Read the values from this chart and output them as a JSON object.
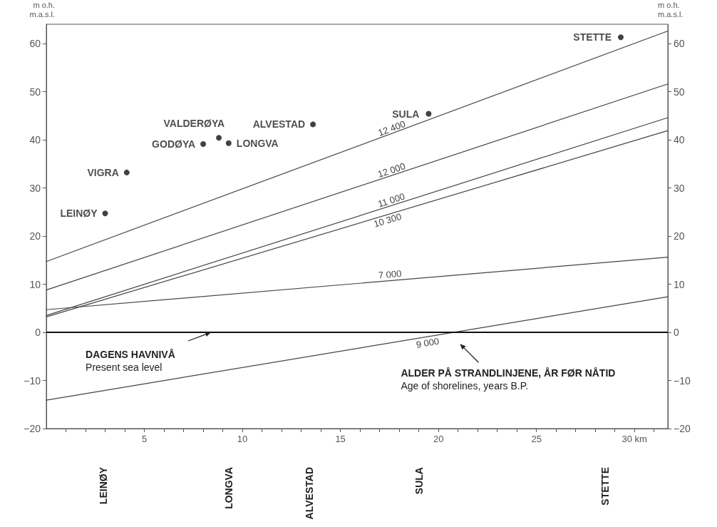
{
  "chart_data": {
    "type": "line",
    "ylabel": "m o.h.\nm.a.s.l.",
    "y2label": "m o.h.\nm.a.s.l.",
    "xlim": [
      0,
      31.7
    ],
    "xticks": [
      {
        "value": 1,
        "label": null
      },
      {
        "value": 2,
        "label": null
      },
      {
        "value": 3,
        "label": null
      },
      {
        "value": 4,
        "label": null
      },
      5,
      {
        "value": 6,
        "label": null
      },
      {
        "value": 7,
        "label": null
      },
      {
        "value": 8,
        "label": null
      },
      {
        "value": 9,
        "label": null
      },
      10,
      {
        "value": 11,
        "label": null
      },
      {
        "value": 12,
        "label": null
      },
      {
        "value": 13,
        "label": null
      },
      {
        "value": 14,
        "label": null
      },
      15,
      {
        "value": 16,
        "label": null
      },
      {
        "value": 17,
        "label": null
      },
      {
        "value": 18,
        "label": null
      },
      {
        "value": 19,
        "label": null
      },
      20,
      {
        "value": 21,
        "label": null
      },
      {
        "value": 22,
        "label": null
      },
      {
        "value": 23,
        "label": null
      },
      {
        "value": 24,
        "label": null
      },
      25,
      {
        "value": 26,
        "label": null
      },
      {
        "value": 27,
        "label": null
      },
      {
        "value": 28,
        "label": null
      },
      {
        "value": 29,
        "label": null
      },
      {
        "value": 30,
        "label": "30 km"
      },
      {
        "value": 31,
        "label": null
      }
    ],
    "ylim": [
      -20,
      64
    ],
    "yticks": [
      -20,
      -10,
      0,
      10,
      20,
      30,
      40,
      50,
      60
    ],
    "y2lim": [
      -20,
      64
    ],
    "y2ticks": [
      -20,
      -10,
      0,
      10,
      20,
      30,
      40,
      50,
      60
    ],
    "grid": false,
    "series": [
      {
        "name": "12 400",
        "color": "#444444",
        "x": [
          0,
          31.7
        ],
        "values": [
          14.7,
          62.6
        ]
      },
      {
        "name": "12 000",
        "color": "#444444",
        "x": [
          0,
          31.7
        ],
        "values": [
          8.8,
          51.6
        ]
      },
      {
        "name": "11 000",
        "color": "#444444",
        "x": [
          0,
          31.7
        ],
        "values": [
          3.5,
          44.6
        ]
      },
      {
        "name": "10 300",
        "color": "#444444",
        "x": [
          0,
          31.7
        ],
        "values": [
          3.2,
          41.9
        ]
      },
      {
        "name": "7 000",
        "color": "#444444",
        "x": [
          0,
          31.7
        ],
        "values": [
          4.7,
          15.6
        ]
      },
      {
        "name": "9 000",
        "color": "#444444",
        "x": [
          0,
          31.7
        ],
        "values": [
          -14.1,
          7.4
        ]
      },
      {
        "name": "LEINØY",
        "type": "scatter",
        "marker": "circle",
        "color": "#111111",
        "x": [
          3.0
        ],
        "values": [
          24.7
        ]
      },
      {
        "name": "VIGRA",
        "type": "scatter",
        "marker": "circle",
        "color": "#111111",
        "x": [
          4.1
        ],
        "values": [
          33.2
        ]
      },
      {
        "name": "GODØYA",
        "type": "scatter",
        "marker": "circle",
        "color": "#111111",
        "x": [
          8.0
        ],
        "values": [
          39.1
        ]
      },
      {
        "name": "VALDERØYA",
        "type": "scatter",
        "marker": "circle",
        "color": "#111111",
        "x": [
          8.8
        ],
        "values": [
          40.4
        ]
      },
      {
        "name": "LONGVA",
        "type": "scatter",
        "marker": "circle",
        "color": "#111111",
        "x": [
          9.3
        ],
        "values": [
          39.3
        ]
      },
      {
        "name": "ALVESTAD",
        "type": "scatter",
        "marker": "circle",
        "color": "#111111",
        "x": [
          13.6
        ],
        "values": [
          43.2
        ]
      },
      {
        "name": "SULA",
        "type": "scatter",
        "marker": "circle",
        "color": "#111111",
        "x": [
          19.5
        ],
        "values": [
          45.4
        ]
      },
      {
        "name": "STETTE",
        "type": "scatter",
        "marker": "circle",
        "color": "#111111",
        "x": [
          29.3
        ],
        "values": [
          61.3
        ]
      }
    ],
    "ref_lines": [
      {
        "axis": "y",
        "value": 0,
        "color": "#111111"
      }
    ],
    "annotations": [
      "DAGENS HAVNIVÅ\nPresent sea level",
      "ALDER PÅ STRANDLINJENE, ÅR FØR NÅTID\nAge of shorelines, years B.P.",
      "LEINØY",
      "LONGVA",
      "ALVESTAD",
      "SULA",
      "STETTE"
    ]
  }
}
